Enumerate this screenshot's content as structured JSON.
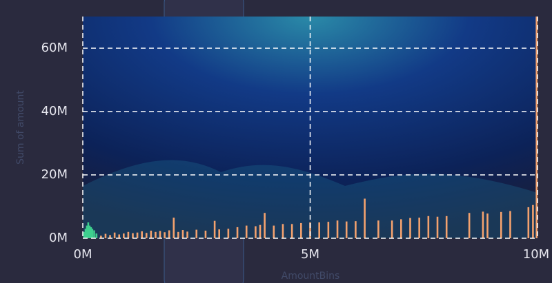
{
  "chart_data": {
    "type": "bar",
    "x_label": "AmountBins",
    "y_label": "Sum of amount",
    "xlim": [
      0,
      10000000
    ],
    "ylim": [
      0,
      70000000
    ],
    "xticks": [
      {
        "value": 0,
        "label": "0M"
      },
      {
        "value": 5000000,
        "label": "5M"
      },
      {
        "value": 10000000,
        "label": "10M"
      }
    ],
    "yticks": [
      {
        "value": 0,
        "label": "0M"
      },
      {
        "value": 20000000,
        "label": "20M"
      },
      {
        "value": 40000000,
        "label": "40M"
      },
      {
        "value": 60000000,
        "label": "60M"
      }
    ],
    "grid": true,
    "series": [
      {
        "color": "#f4a26e",
        "x": [
          100000,
          200000,
          300000,
          400000,
          500000,
          600000,
          700000,
          800000,
          900000,
          1000000,
          1100000,
          1200000,
          1300000,
          1400000,
          1500000,
          1600000,
          1700000,
          1800000,
          1900000,
          2000000,
          2100000,
          2200000,
          2300000,
          2500000,
          2700000,
          2900000,
          3000000,
          3200000,
          3400000,
          3600000,
          3800000,
          3900000,
          4000000,
          4200000,
          4400000,
          4600000,
          4800000,
          5000000,
          5200000,
          5400000,
          5600000,
          5800000,
          6000000,
          6200000,
          6500000,
          6800000,
          7000000,
          7200000,
          7400000,
          7600000,
          7800000,
          8000000,
          8500000,
          8800000,
          8900000,
          9200000,
          9400000,
          9800000,
          9900000,
          10000000
        ],
        "values": [
          1000000,
          1500000,
          1200000,
          800000,
          1400000,
          1000000,
          1800000,
          1200000,
          1500000,
          2000000,
          1600000,
          1800000,
          2200000,
          1700000,
          2400000,
          2000000,
          2300000,
          1900000,
          2500000,
          6500000,
          2000000,
          2600000,
          2100000,
          2700000,
          2400000,
          5500000,
          2800000,
          3000000,
          3500000,
          4000000,
          3800000,
          4200000,
          8000000,
          4000000,
          4500000,
          4500000,
          4800000,
          5000000,
          5000000,
          5200000,
          5600000,
          5300000,
          5400000,
          12500000,
          5600000,
          5600000,
          6000000,
          6400000,
          6500000,
          7000000,
          6800000,
          7000000,
          8000000,
          8400000,
          7800000,
          8300000,
          8600000,
          9800000,
          10500000,
          70000000
        ]
      },
      {
        "color": "#3ecf8e",
        "x": [
          30000,
          60000,
          90000,
          120000,
          150000,
          180000,
          210000,
          250000,
          300000
        ],
        "values": [
          2000000,
          3000000,
          4000000,
          5000000,
          4000000,
          3500000,
          3000000,
          2500000,
          1500000
        ]
      }
    ]
  }
}
